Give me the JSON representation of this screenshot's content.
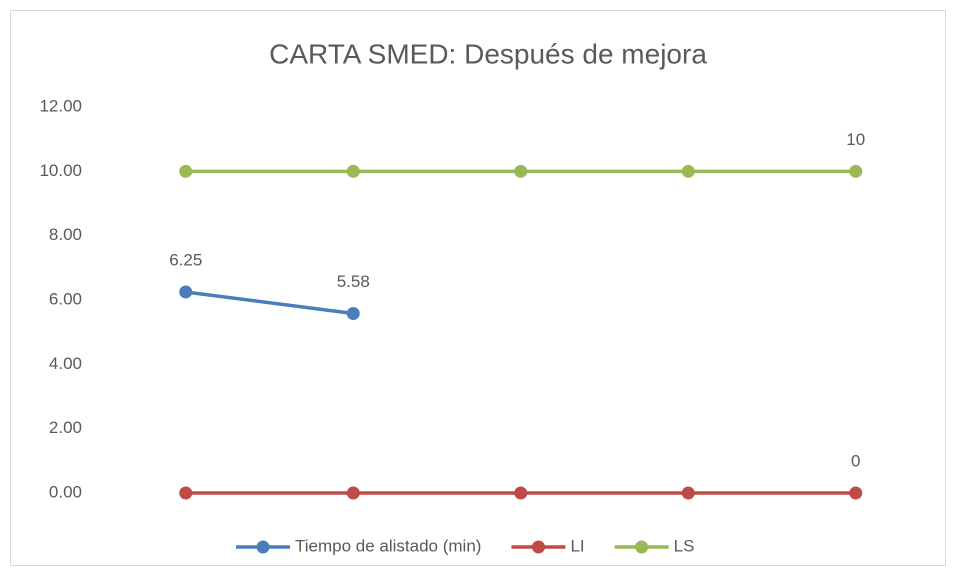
{
  "chart_data": {
    "type": "line",
    "title": "CARTA SMED: Después de mejora",
    "categories": [
      null,
      null,
      null,
      null,
      null
    ],
    "series": [
      {
        "name": "Tiempo de alistado (min)",
        "color": "#4a7ebb",
        "values": [
          6.25,
          5.58,
          null,
          null,
          null
        ],
        "value_labels": [
          "6.25",
          "5.58",
          null,
          null,
          null
        ]
      },
      {
        "name": "LI",
        "color": "#be4b48",
        "values": [
          0,
          0,
          0,
          0,
          0
        ],
        "value_labels": [
          null,
          null,
          null,
          null,
          "0"
        ]
      },
      {
        "name": "LS",
        "color": "#98b954",
        "values": [
          10,
          10,
          10,
          10,
          10
        ],
        "value_labels": [
          null,
          null,
          null,
          null,
          "10"
        ]
      }
    ],
    "ylim": [
      0,
      12
    ],
    "yticks": [
      {
        "value": 0,
        "label": "0.00"
      },
      {
        "value": 2,
        "label": "2.00"
      },
      {
        "value": 4,
        "label": "4.00"
      },
      {
        "value": 6,
        "label": "6.00"
      },
      {
        "value": 8,
        "label": "8.00"
      },
      {
        "value": 10,
        "label": "10.00"
      },
      {
        "value": 12,
        "label": "12.00"
      }
    ],
    "grid": false,
    "legend": "bottom"
  }
}
